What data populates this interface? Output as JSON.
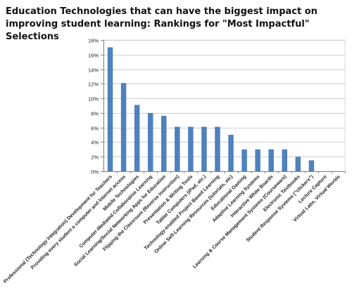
{
  "chart_data": {
    "type": "bar",
    "title": "Education Technologies that can have the biggest impact on improving student learning: Rankings for \"Most Impactful\" Selections",
    "xlabel": "",
    "ylabel": "",
    "ylim": [
      0,
      18
    ],
    "yticks": [
      0,
      2,
      4,
      6,
      8,
      10,
      12,
      14,
      16,
      18
    ],
    "ytick_suffix": "%",
    "grid": true,
    "legend": "none",
    "bar_color": "#4f81bd",
    "categories": [
      "Professional (Technology Integration) Development for Teachers",
      "Providing every student a computer and Internet access",
      "Mobile Technologies",
      "Computer-Mediated Collaborative Learning",
      "Social Learning/Social Networking Apps for Education",
      "Flipping the Classroom (Reverse Instruction)",
      "Presentation & Writing Tools",
      "Tablet Computers (iPad, etc.)",
      "Technology-enabled Project Based Learning",
      "Online Self-Learning Resources (tutorials, etc)",
      "Educational Gaming",
      "Adaptive Learning Systems",
      "Interactive White Boards",
      "Learning & Course Management Systems (Courseware)",
      "Electronic Textbooks",
      "Student Response Systems (\"clickers\")",
      "Lecture Capture",
      "Virtual Labs, Virtual Worlds"
    ],
    "values": [
      17.0,
      12.1,
      9.1,
      8.0,
      7.6,
      6.1,
      6.1,
      6.1,
      6.1,
      5.0,
      3.0,
      3.0,
      3.0,
      3.0,
      2.0,
      1.5,
      0,
      0
    ]
  }
}
